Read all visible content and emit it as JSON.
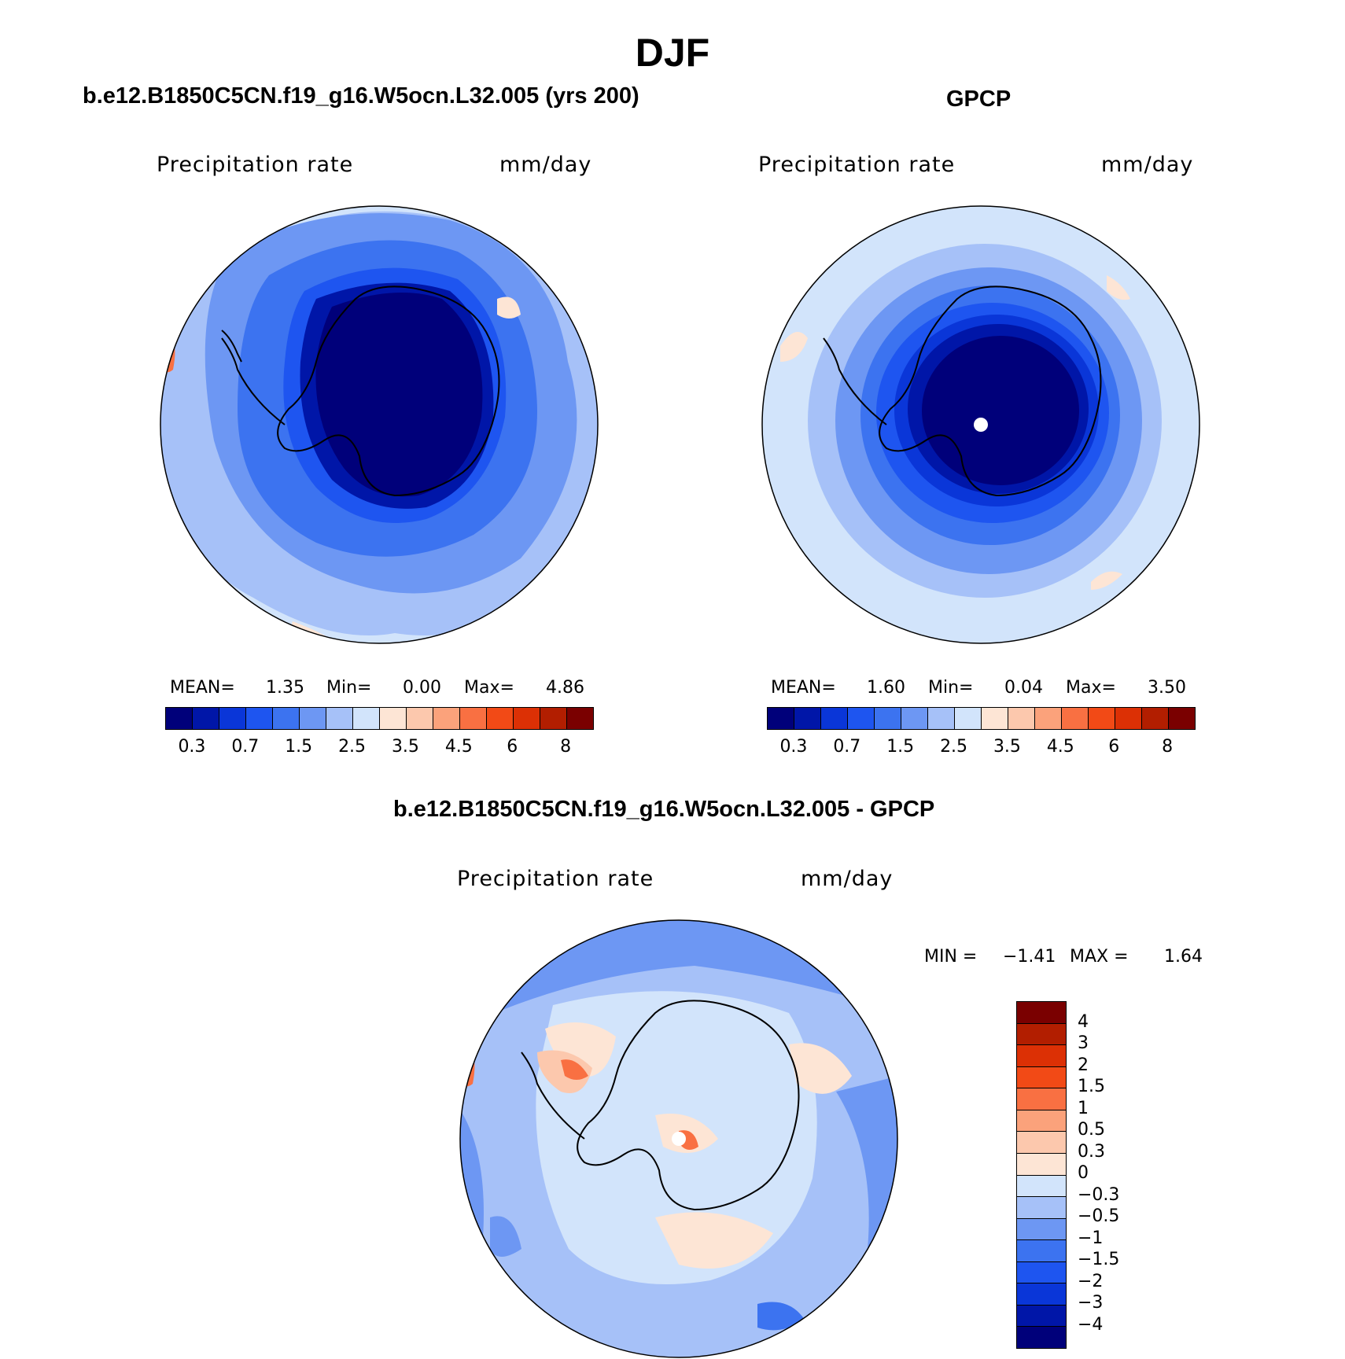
{
  "title": "DJF",
  "panels": [
    {
      "title": "b.e12.B1850C5CN.f19_g16.W5ocn.L32.005 (yrs 200)",
      "variable": "Precipitation  rate",
      "units": "mm/day",
      "stats": {
        "mean_label": "MEAN=",
        "mean": "1.35",
        "min_label": "Min=",
        "min": "0.00",
        "max_label": "Max=",
        "max": "4.86"
      },
      "ticks": [
        "0.3",
        "0.7",
        "1.5",
        "2.5",
        "3.5",
        "4.5",
        "6",
        "8"
      ]
    },
    {
      "title": "GPCP",
      "variable": "Precipitation  rate",
      "units": "mm/day",
      "stats": {
        "mean_label": "MEAN=",
        "mean": "1.60",
        "min_label": "Min=",
        "min": "0.04",
        "max_label": "Max=",
        "max": "3.50"
      },
      "ticks": [
        "0.3",
        "0.7",
        "1.5",
        "2.5",
        "3.5",
        "4.5",
        "6",
        "8"
      ]
    }
  ],
  "diff": {
    "title": "b.e12.B1850C5CN.f19_g16.W5ocn.L32.005 - GPCP",
    "variable": "Precipitation  rate",
    "units": "mm/day",
    "stats": {
      "min_label": "MIN =",
      "min": "−1.41",
      "max_label": "MAX =",
      "max": "1.64"
    },
    "ticks": [
      "4",
      "3",
      "2",
      "1.5",
      "1",
      "0.5",
      "0.3",
      "0",
      "−0.3",
      "−0.5",
      "−1",
      "−1.5",
      "−2",
      "−3",
      "−4"
    ]
  },
  "colors": {
    "abs_scale": [
      "#00007a",
      "#0016a8",
      "#0a36d8",
      "#1e55f0",
      "#3c73f0",
      "#6d97f3",
      "#a6c1f8",
      "#d2e4fb",
      "#fde5d5",
      "#fcc8ad",
      "#fba27b",
      "#f97042",
      "#f24a16",
      "#dc3005",
      "#b21e00",
      "#7a0000"
    ],
    "diff_scale": [
      "#7a0000",
      "#b21e00",
      "#dc3005",
      "#f24a16",
      "#f97042",
      "#fba27b",
      "#fcc8ad",
      "#fde5d5",
      "#d2e4fb",
      "#a6c1f8",
      "#6d97f3",
      "#3c73f0",
      "#1e55f0",
      "#0a36d8",
      "#0016a8",
      "#00007a"
    ]
  }
}
